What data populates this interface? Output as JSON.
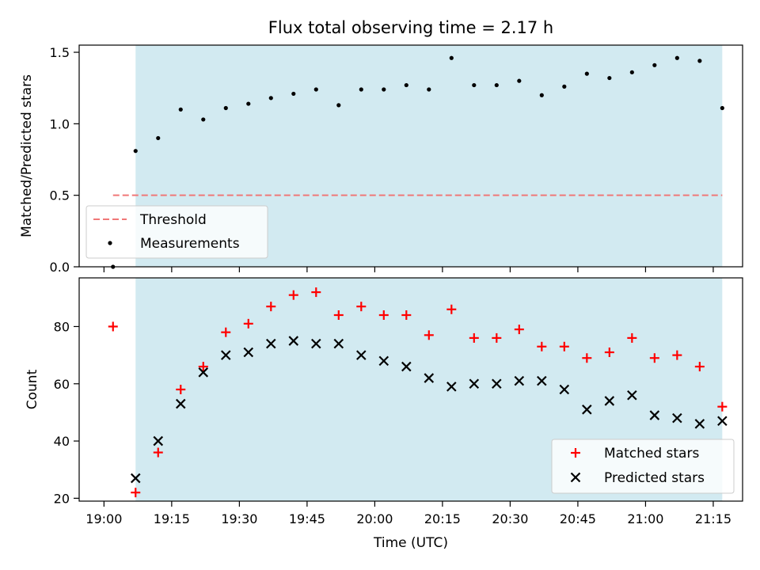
{
  "chart_data": [
    {
      "type": "scatter",
      "title": "Flux total observing time = 2.17 h",
      "xlabel": "",
      "ylabel": "Matched/Predicted stars",
      "ylim": [
        0,
        1.55
      ],
      "yticks": [
        "0.0",
        "0.5",
        "1.0",
        "1.5"
      ],
      "threshold": {
        "name": "Threshold",
        "value": 0.5,
        "x_range": [
          "19:02",
          "21:17"
        ],
        "color": "#f07878",
        "style": "dashed"
      },
      "observing_window": {
        "start": "19:07",
        "end": "21:17",
        "color": "#add8e6"
      },
      "legend_position": "lower-left",
      "series": [
        {
          "name": "Measurements",
          "color": "#000000",
          "marker": "dot",
          "x": [
            "19:02",
            "19:07",
            "19:12",
            "19:17",
            "19:22",
            "19:27",
            "19:32",
            "19:37",
            "19:42",
            "19:47",
            "19:52",
            "19:57",
            "20:02",
            "20:07",
            "20:12",
            "20:17",
            "20:22",
            "20:27",
            "20:32",
            "20:37",
            "20:42",
            "20:47",
            "20:52",
            "20:57",
            "21:02",
            "21:07",
            "21:12",
            "21:17"
          ],
          "y": [
            0.0,
            0.81,
            0.9,
            1.1,
            1.03,
            1.11,
            1.14,
            1.18,
            1.21,
            1.24,
            1.13,
            1.24,
            1.24,
            1.27,
            1.24,
            1.46,
            1.27,
            1.27,
            1.3,
            1.2,
            1.26,
            1.35,
            1.32,
            1.36,
            1.41,
            1.46,
            1.44,
            1.11
          ]
        }
      ]
    },
    {
      "type": "scatter",
      "title": "",
      "xlabel": "Time (UTC)",
      "ylabel": "Count",
      "ylim": [
        19,
        97
      ],
      "yticks": [
        "20",
        "40",
        "60",
        "80"
      ],
      "xticks": [
        "19:00",
        "19:15",
        "19:30",
        "19:45",
        "20:00",
        "20:15",
        "20:30",
        "20:45",
        "21:00",
        "21:15"
      ],
      "observing_window": {
        "start": "19:07",
        "end": "21:17",
        "color": "#add8e6"
      },
      "legend_position": "lower-right",
      "series": [
        {
          "name": "Matched stars",
          "color": "#ff0000",
          "marker": "plus",
          "x": [
            "19:02",
            "19:07",
            "19:12",
            "19:17",
            "19:22",
            "19:27",
            "19:32",
            "19:37",
            "19:42",
            "19:47",
            "19:52",
            "19:57",
            "20:02",
            "20:07",
            "20:12",
            "20:17",
            "20:22",
            "20:27",
            "20:32",
            "20:37",
            "20:42",
            "20:47",
            "20:52",
            "20:57",
            "21:02",
            "21:07",
            "21:12",
            "21:17"
          ],
          "y": [
            80,
            22,
            36,
            58,
            66,
            78,
            81,
            87,
            91,
            92,
            84,
            87,
            84,
            84,
            77,
            86,
            76,
            76,
            79,
            73,
            73,
            69,
            71,
            76,
            69,
            70,
            66,
            52
          ]
        },
        {
          "name": "Predicted stars",
          "color": "#000000",
          "marker": "x",
          "x": [
            "19:07",
            "19:12",
            "19:17",
            "19:22",
            "19:27",
            "19:32",
            "19:37",
            "19:42",
            "19:47",
            "19:52",
            "19:57",
            "20:02",
            "20:07",
            "20:12",
            "20:17",
            "20:22",
            "20:27",
            "20:32",
            "20:37",
            "20:42",
            "20:47",
            "20:52",
            "20:57",
            "21:02",
            "21:07",
            "21:12",
            "21:17"
          ],
          "y": [
            27,
            40,
            53,
            64,
            70,
            71,
            74,
            75,
            74,
            74,
            70,
            68,
            66,
            62,
            59,
            60,
            60,
            61,
            61,
            58,
            51,
            54,
            56,
            49,
            48,
            46,
            47
          ]
        }
      ]
    }
  ]
}
